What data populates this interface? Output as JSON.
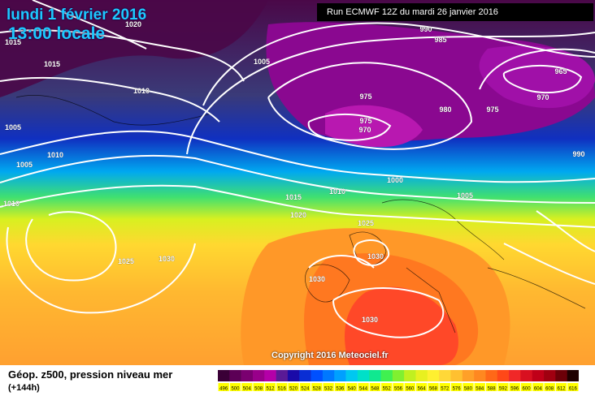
{
  "header": {
    "date": "lundi 1 février 2016",
    "time": "13:00 locale",
    "run_info": "Run ECMWF 12Z du mardi 26 janvier 2016"
  },
  "map": {
    "copyright": "Copyright 2016 Meteociel.fr",
    "pressure_labels": [
      "1020",
      "1015",
      "1015",
      "1005",
      "1010",
      "1005",
      "1010",
      "1005",
      "1010",
      "990",
      "985",
      "965",
      "970",
      "975",
      "980",
      "975",
      "975",
      "970",
      "990",
      "1000",
      "1005",
      "1015",
      "1010",
      "1020",
      "1025",
      "1030",
      "1030",
      "1030",
      "1025",
      "1030"
    ]
  },
  "footer": {
    "title": "Géop. z500, pression niveau mer",
    "subtitle": "(+144h)"
  },
  "legend": {
    "ticks": [
      "496",
      "500",
      "504",
      "508",
      "512",
      "516",
      "520",
      "524",
      "528",
      "532",
      "536",
      "540",
      "544",
      "548",
      "552",
      "556",
      "560",
      "564",
      "568",
      "572",
      "576",
      "580",
      "584",
      "588",
      "592",
      "596",
      "600",
      "604",
      "608",
      "612",
      "616"
    ],
    "colors": [
      "#3a0036",
      "#5c0056",
      "#7a0070",
      "#98008a",
      "#b400a8",
      "#5a1a96",
      "#1a0aa8",
      "#0a2ed4",
      "#0050ff",
      "#0078ff",
      "#00a0ff",
      "#00c8f0",
      "#00e0c8",
      "#10e890",
      "#40f050",
      "#80f030",
      "#c0f020",
      "#e8f020",
      "#fff030",
      "#ffd838",
      "#ffc030",
      "#ffa028",
      "#ff8820",
      "#ff6818",
      "#ff4818",
      "#f02828",
      "#d81020",
      "#c00018",
      "#a00010",
      "#6c0008",
      "#200000"
    ]
  }
}
